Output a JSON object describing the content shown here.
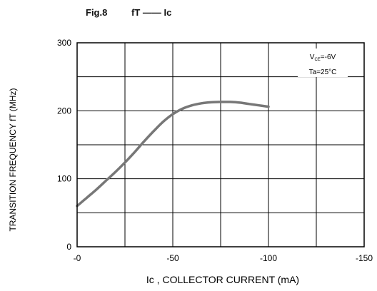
{
  "figure": {
    "label": "Fig.8",
    "relation": "fT —— Ic"
  },
  "chart_data": {
    "type": "line",
    "title": "Fig.8",
    "xlabel": "Ic , COLLECTOR CURRENT (mA)",
    "ylabel": "TRANSITION FREQUENCY fT (MHz)",
    "xlim": [
      0,
      -150
    ],
    "ylim": [
      0,
      300
    ],
    "x_ticks": [
      0,
      -50,
      -100,
      -150
    ],
    "x_tick_labels": [
      "-0",
      "-50",
      "-100",
      "-150"
    ],
    "y_ticks": [
      0,
      100,
      200,
      300
    ],
    "y_tick_labels": [
      "0",
      "100",
      "200",
      "300"
    ],
    "grid": true,
    "grid_x_step": -25,
    "grid_y_step": 50,
    "annotations": [
      "VCE=-6V",
      "Ta=25°C"
    ],
    "line_color": "#777777",
    "series": [
      {
        "x": [
          0,
          -5,
          -10,
          -15,
          -20,
          -25,
          -30,
          -35,
          -40,
          -45,
          -50,
          -55,
          -60,
          -65,
          -70,
          -75,
          -80,
          -85,
          -90,
          -95,
          -100
        ],
        "values": [
          60,
          72,
          84,
          97,
          110,
          124,
          139,
          155,
          170,
          184,
          195,
          203,
          208,
          211,
          212.5,
          213,
          213,
          212,
          210,
          208,
          206
        ]
      }
    ]
  }
}
